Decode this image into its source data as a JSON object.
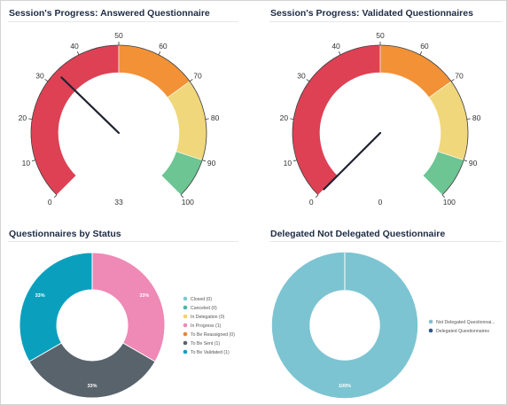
{
  "gauges": [
    {
      "title": "Session's Progress: Answered Questionnaire",
      "value": 33,
      "value_label": "33",
      "min": 0,
      "max": 100,
      "ticks": [
        "0",
        "10",
        "20",
        "30",
        "40",
        "50",
        "60",
        "70",
        "80",
        "90",
        "100"
      ],
      "bands": [
        {
          "from": 0,
          "to": 50,
          "color": "#de4154"
        },
        {
          "from": 50,
          "to": 70,
          "color": "#f29136"
        },
        {
          "from": 70,
          "to": 90,
          "color": "#f0d77b"
        },
        {
          "from": 90,
          "to": 100,
          "color": "#6cc592"
        }
      ]
    },
    {
      "title": "Session's Progress: Validated Questionnaires",
      "value": 0,
      "value_label": "0",
      "min": 0,
      "max": 100,
      "ticks": [
        "0",
        "10",
        "20",
        "30",
        "40",
        "50",
        "60",
        "70",
        "80",
        "90",
        "100"
      ],
      "bands": [
        {
          "from": 0,
          "to": 50,
          "color": "#de4154"
        },
        {
          "from": 50,
          "to": 70,
          "color": "#f29136"
        },
        {
          "from": 70,
          "to": 90,
          "color": "#f0d77b"
        },
        {
          "from": 90,
          "to": 100,
          "color": "#6cc592"
        }
      ]
    }
  ],
  "chart_data": [
    {
      "type": "pie",
      "title": "Questionnaires by Status",
      "slices": [
        {
          "label": "Closed (0)",
          "value": 0,
          "color": "#7ec9d0"
        },
        {
          "label": "Canceled (0)",
          "value": 0,
          "color": "#4ab7a0"
        },
        {
          "label": "In Delegation (0)",
          "value": 0,
          "color": "#f2d36b"
        },
        {
          "label": "In Progress (1)",
          "value": 1,
          "color": "#ef89b6",
          "pct_label": "33%"
        },
        {
          "label": "To Be Reassigned (0)",
          "value": 0,
          "color": "#e8833a"
        },
        {
          "label": "To Be Sent (1)",
          "value": 1,
          "color": "#58636c",
          "pct_label": "33%"
        },
        {
          "label": "To Be Validated (1)",
          "value": 1,
          "color": "#0aa0bd",
          "pct_label": "33%"
        }
      ],
      "legend": "right"
    },
    {
      "type": "pie",
      "title": "Delegated Not Delegated Questionnaire",
      "slices": [
        {
          "label": "Not Delegated Questionnai...",
          "value": 1,
          "color": "#7cc4d1",
          "pct_label": "100%"
        },
        {
          "label": "Delegated Questionnaires",
          "value": 0,
          "color": "#2d5796"
        }
      ],
      "legend": "right"
    }
  ]
}
